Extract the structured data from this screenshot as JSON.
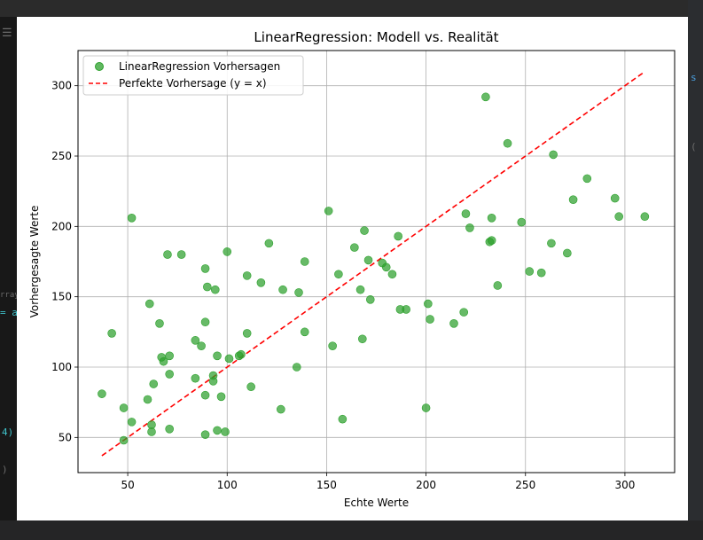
{
  "editor": {
    "glyphs": [
      {
        "key": "menu",
        "text": "☰"
      },
      {
        "key": "array",
        "text": "rray"
      },
      {
        "key": "eq",
        "text": "= a"
      },
      {
        "key": "paren4",
        "text": "4)"
      },
      {
        "key": "paren",
        "text": ")"
      },
      {
        "key": "r-s",
        "text": "s"
      },
      {
        "key": "r-c",
        "text": "("
      }
    ]
  },
  "chart_data": {
    "type": "scatter",
    "title": "LinearRegression: Modell vs. Realität",
    "xlabel": "Echte Werte",
    "ylabel": "Vorhergesagte Werte",
    "xlim": [
      25,
      325
    ],
    "ylim": [
      25,
      325
    ],
    "xticks": [
      50,
      100,
      150,
      200,
      250,
      300
    ],
    "yticks": [
      50,
      100,
      150,
      200,
      250,
      300
    ],
    "grid": true,
    "legend_position": "top-left",
    "series": [
      {
        "name": "LinearRegression Vorhersagen",
        "kind": "scatter",
        "color": "#2ca02c",
        "points": [
          [
            37,
            81
          ],
          [
            42,
            124
          ],
          [
            48,
            71
          ],
          [
            48,
            48
          ],
          [
            52,
            206
          ],
          [
            52,
            61
          ],
          [
            60,
            77
          ],
          [
            61,
            145
          ],
          [
            62,
            59
          ],
          [
            62,
            54
          ],
          [
            63,
            88
          ],
          [
            66,
            131
          ],
          [
            67,
            107
          ],
          [
            68,
            104
          ],
          [
            70,
            180
          ],
          [
            71,
            95
          ],
          [
            71,
            108
          ],
          [
            71,
            56
          ],
          [
            77,
            180
          ],
          [
            84,
            92
          ],
          [
            84,
            119
          ],
          [
            87,
            115
          ],
          [
            89,
            80
          ],
          [
            89,
            52
          ],
          [
            89,
            132
          ],
          [
            89,
            170
          ],
          [
            90,
            157
          ],
          [
            93,
            94
          ],
          [
            93,
            90
          ],
          [
            94,
            155
          ],
          [
            95,
            108
          ],
          [
            95,
            55
          ],
          [
            97,
            79
          ],
          [
            99,
            54
          ],
          [
            100,
            182
          ],
          [
            101,
            106
          ],
          [
            106,
            108
          ],
          [
            107,
            109
          ],
          [
            110,
            165
          ],
          [
            110,
            124
          ],
          [
            112,
            86
          ],
          [
            117,
            160
          ],
          [
            121,
            188
          ],
          [
            127,
            70
          ],
          [
            128,
            155
          ],
          [
            135,
            100
          ],
          [
            136,
            153
          ],
          [
            139,
            125
          ],
          [
            139,
            175
          ],
          [
            151,
            211
          ],
          [
            153,
            115
          ],
          [
            156,
            166
          ],
          [
            158,
            63
          ],
          [
            164,
            185
          ],
          [
            167,
            155
          ],
          [
            168,
            120
          ],
          [
            169,
            197
          ],
          [
            171,
            176
          ],
          [
            172,
            148
          ],
          [
            178,
            174
          ],
          [
            180,
            171
          ],
          [
            183,
            166
          ],
          [
            186,
            193
          ],
          [
            187,
            141
          ],
          [
            190,
            141
          ],
          [
            200,
            71
          ],
          [
            201,
            145
          ],
          [
            202,
            134
          ],
          [
            214,
            131
          ],
          [
            219,
            139
          ],
          [
            220,
            209
          ],
          [
            222,
            199
          ],
          [
            230,
            292
          ],
          [
            232,
            189
          ],
          [
            233,
            190
          ],
          [
            233,
            206
          ],
          [
            236,
            158
          ],
          [
            241,
            259
          ],
          [
            248,
            203
          ],
          [
            252,
            168
          ],
          [
            258,
            167
          ],
          [
            263,
            188
          ],
          [
            264,
            251
          ],
          [
            271,
            181
          ],
          [
            274,
            219
          ],
          [
            281,
            234
          ],
          [
            295,
            220
          ],
          [
            297,
            207
          ],
          [
            310,
            207
          ]
        ]
      },
      {
        "name": "Perfekte Vorhersage (y = x)",
        "kind": "line",
        "color": "#ff0000",
        "style": "dashed",
        "x": [
          37,
          310
        ],
        "y": [
          37,
          310
        ]
      }
    ]
  }
}
